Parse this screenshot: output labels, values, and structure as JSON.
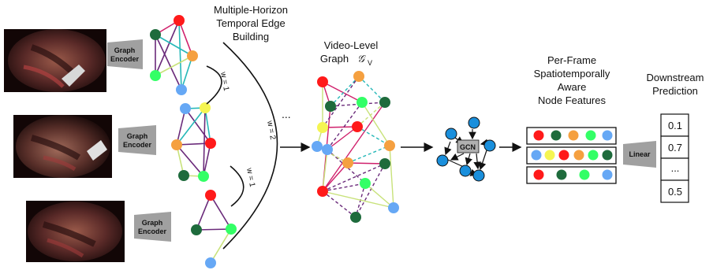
{
  "colors": {
    "red": "#ff1a1a",
    "darkgreen": "#1e6b3c",
    "orange": "#f5a040",
    "lightgreen": "#33ff66",
    "blue": "#66a8f5",
    "yellow": "#f5f552",
    "gcnblue": "#1a8fdc",
    "magenta": "#d0206c",
    "teal": "#26b8b8",
    "purple": "#6a2a7a",
    "lime": "#c8e27a"
  },
  "labels": {
    "encoder_line1": "Graph",
    "encoder_line2": "Encoder",
    "horizon_line1": "Multiple-Horizon",
    "horizon_line2": "Temporal Edge",
    "horizon_line3": "Building",
    "w1_top": "w = 1",
    "w1_bottom": "w = 1",
    "w2": "w = 2",
    "ellipsis": "...",
    "video_line1": "Video-Level",
    "video_line2": "Graph",
    "video_symbol": "𝒢",
    "video_sub": "V",
    "gcn": "GCN",
    "perframe_line1": "Per-Frame",
    "perframe_line2": "Spatiotemporally",
    "perframe_line3": "Aware",
    "perframe_line4": "Node Features",
    "linear": "Linear",
    "downstream_line1": "Downstream",
    "downstream_line2": "Prediction"
  },
  "predictions": [
    "0.1",
    "0.7",
    "...",
    "0.5"
  ]
}
